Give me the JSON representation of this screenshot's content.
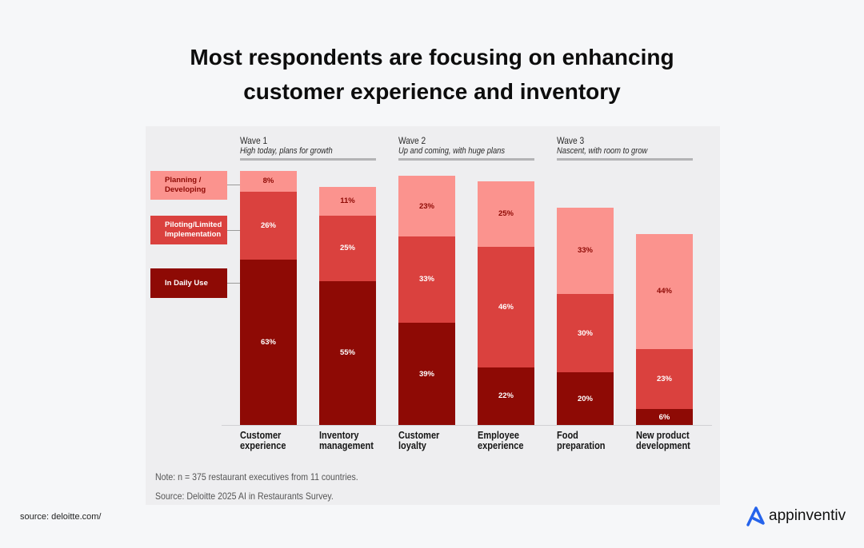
{
  "title_line1": "Most respondents are focusing on enhancing",
  "title_line2": "customer experience and inventory",
  "waves": [
    {
      "title": "Wave 1",
      "subtitle": "High today, plans for growth"
    },
    {
      "title": "Wave 2",
      "subtitle": "Up and coming, with huge plans"
    },
    {
      "title": "Wave 3",
      "subtitle": "Nascent, with room to grow"
    }
  ],
  "colors": {
    "planning": "#fb938e",
    "piloting": "#da413e",
    "daily": "#8e0a05"
  },
  "chart_data": {
    "type": "bar",
    "stacked": true,
    "categories": [
      "Customer\nexperience",
      "Inventory\nmanagement",
      "Customer\nloyalty",
      "Employee\nexperience",
      "Food\npreparation",
      "New product\ndevelopment"
    ],
    "series": [
      {
        "name": "In Daily Use",
        "values": [
          63,
          55,
          39,
          22,
          20,
          6
        ]
      },
      {
        "name": "Piloting/Limited Implementation",
        "values": [
          26,
          25,
          33,
          46,
          30,
          23
        ]
      },
      {
        "name": "Planning / Developing",
        "values": [
          8,
          11,
          23,
          25,
          33,
          44
        ]
      }
    ],
    "ylim": [
      0,
      100
    ],
    "unit": "%"
  },
  "note": "Note: n = 375 restaurant executives from 11 countries.",
  "source_note": "Source: Deloitte 2025 AI in Restaurants Survey.",
  "source_label": "source: deloitte.com/",
  "logo_text": "appinventiv"
}
